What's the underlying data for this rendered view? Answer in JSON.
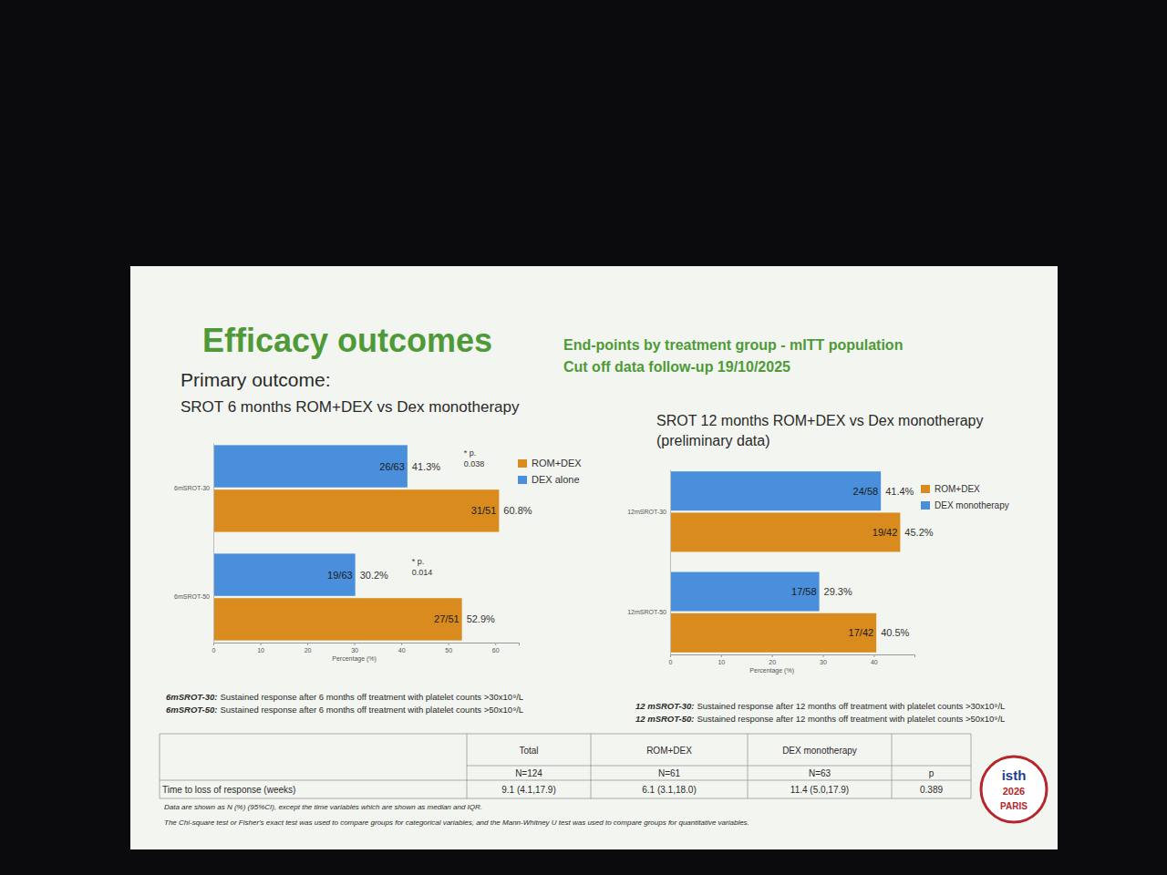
{
  "slide": {
    "title": "Efficacy outcomes",
    "header": [
      "End-points by treatment group - mITT population",
      "Cut off data follow-up 19/10/2025"
    ],
    "section": "Primary outcome:",
    "logo": [
      "isth",
      "2026",
      "PARIS"
    ]
  },
  "chart_data": [
    {
      "type": "bar",
      "orientation": "horizontal",
      "title": "SROT 6 months ROM+DEX vs Dex monotherapy",
      "x_label": "Percentage (%)",
      "categories": [
        "6mSROT-30",
        "6mSROT-50"
      ],
      "series": [
        {
          "name": "ROM+DEX",
          "color": "#d98b1e",
          "values": [
            60.8,
            52.9
          ],
          "value_labels": [
            "60.8%",
            "52.9%"
          ],
          "fractions": [
            "31/51",
            "27/51"
          ]
        },
        {
          "name": "DEX alone",
          "color": "#4a8fdb",
          "values": [
            41.3,
            30.2
          ],
          "value_labels": [
            "41.3%",
            "30.2%"
          ],
          "fractions": [
            "26/63",
            "19/63"
          ]
        }
      ],
      "xlim": [
        0,
        65
      ],
      "xticks": [
        0,
        10,
        20,
        30,
        40,
        50,
        60
      ],
      "grid": false,
      "data_labels": true,
      "legend": "upper right",
      "annotations": [
        {
          "label": "* p.",
          "p": 0.038
        },
        {
          "label": "* p.",
          "p": 0.014
        }
      ],
      "definitions": [
        {
          "term": "6mSROT-30:",
          "text": "Sustained response after 6 months off treatment with platelet counts >30x10⁹/L"
        },
        {
          "term": "6mSROT-50:",
          "text": "Sustained response after 6 months off treatment with platelet counts >50x10⁹/L"
        }
      ]
    },
    {
      "type": "bar",
      "orientation": "horizontal",
      "title": "SROT 12 months ROM+DEX vs Dex monotherapy (preliminary data)",
      "x_label": "Percentage (%)",
      "categories": [
        "12mSROT-30",
        "12mSROT-50"
      ],
      "series": [
        {
          "name": "ROM+DEX",
          "color": "#d98b1e",
          "values": [
            45.2,
            40.5
          ],
          "value_labels": [
            "45.2%",
            "40.5%"
          ],
          "fractions": [
            "19/42",
            "17/42"
          ]
        },
        {
          "name": "DEX monotherapy",
          "color": "#4a8fdb",
          "values": [
            41.4,
            29.3
          ],
          "value_labels": [
            "41.4%",
            "29.3%"
          ],
          "fractions": [
            "24/58",
            "17/58"
          ]
        }
      ],
      "xlim": [
        0,
        48
      ],
      "xticks": [
        0,
        10,
        20,
        30,
        40
      ],
      "grid": false,
      "data_labels": true,
      "legend": "upper right",
      "definitions": [
        {
          "term": "12 mSROT-30:",
          "text": "Sustained response after 12 months  off treatment with platelet counts >30x10⁹/L"
        },
        {
          "term": "12 mSROT-50:",
          "text": "Sustained response after 12 months  off treatment with platelet counts >50x10⁹/L"
        }
      ]
    }
  ],
  "table": {
    "columns": [
      {
        "name": "Total",
        "n": "N=124"
      },
      {
        "name": "ROM+DEX",
        "n": "N=61"
      },
      {
        "name": "DEX monotherapy",
        "n": "N=63"
      },
      {
        "name": "p"
      }
    ],
    "rows": [
      {
        "label": "Time to loss of response (weeks)",
        "cells": [
          "9.1 (4.1,17.9)",
          "6.1 (3.1,18.0)",
          "11.4 (5.0,17.9)",
          "0.389"
        ]
      }
    ],
    "notes": [
      "Data are shown as N (%) (95%CI), except the time variables which are shown as median and IQR.",
      "The Chi-square test or Fisher's exact test was used to compare groups for categorical variables, and the Mann-Whitney U test was used to compare groups for quantitative variables."
    ]
  }
}
